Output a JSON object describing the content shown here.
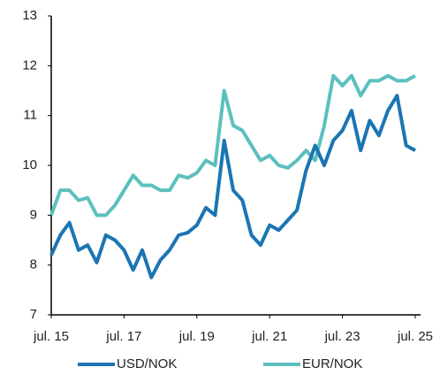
{
  "chart_data": {
    "type": "line",
    "x": [
      2015.5,
      2015.75,
      2016.0,
      2016.25,
      2016.5,
      2016.75,
      2017.0,
      2017.25,
      2017.5,
      2017.75,
      2018.0,
      2018.25,
      2018.5,
      2018.75,
      2019.0,
      2019.25,
      2019.5,
      2019.75,
      2020.0,
      2020.25,
      2020.5,
      2020.75,
      2021.0,
      2021.25,
      2021.5,
      2021.75,
      2022.0,
      2022.25,
      2022.5,
      2022.75,
      2023.0,
      2023.25,
      2023.5,
      2023.75,
      2024.0,
      2024.25,
      2024.5,
      2024.75,
      2025.0,
      2025.25,
      2025.5
    ],
    "series": [
      {
        "name": "USD/NOK",
        "color": "#1b75b3",
        "values": [
          8.2,
          8.6,
          8.85,
          8.3,
          8.4,
          8.05,
          8.6,
          8.5,
          8.3,
          7.9,
          8.3,
          7.75,
          8.1,
          8.3,
          8.6,
          8.65,
          8.8,
          9.15,
          9.0,
          10.5,
          9.5,
          9.3,
          8.6,
          8.4,
          8.8,
          8.7,
          8.9,
          9.1,
          9.9,
          10.4,
          10.0,
          10.5,
          10.7,
          11.1,
          10.3,
          10.9,
          10.6,
          11.1,
          11.4,
          10.4,
          10.3
        ]
      },
      {
        "name": "EUR/NOK",
        "color": "#5cc0bd",
        "values": [
          9.0,
          9.5,
          9.5,
          9.3,
          9.35,
          9.0,
          9.0,
          9.2,
          9.5,
          9.8,
          9.6,
          9.6,
          9.5,
          9.5,
          9.8,
          9.75,
          9.85,
          10.1,
          10.0,
          11.5,
          10.8,
          10.7,
          10.4,
          10.1,
          10.2,
          10.0,
          9.95,
          10.1,
          10.3,
          10.1,
          10.8,
          11.8,
          11.6,
          11.8,
          11.4,
          11.7,
          11.7,
          11.8,
          11.7,
          11.7,
          11.8
        ]
      }
    ],
    "xlim": [
      2015.5,
      2025.5
    ],
    "xticks": [
      {
        "value": 2015.5,
        "label": "jul. 15"
      },
      {
        "value": 2017.5,
        "label": "jul. 17"
      },
      {
        "value": 2019.5,
        "label": "jul. 19"
      },
      {
        "value": 2021.5,
        "label": "jul. 21"
      },
      {
        "value": 2023.5,
        "label": "jul. 23"
      },
      {
        "value": 2025.5,
        "label": "jul. 25"
      }
    ],
    "ylim": [
      7,
      13
    ],
    "yticks": [
      7,
      8,
      9,
      10,
      11,
      12,
      13
    ],
    "legend": "bottom"
  }
}
